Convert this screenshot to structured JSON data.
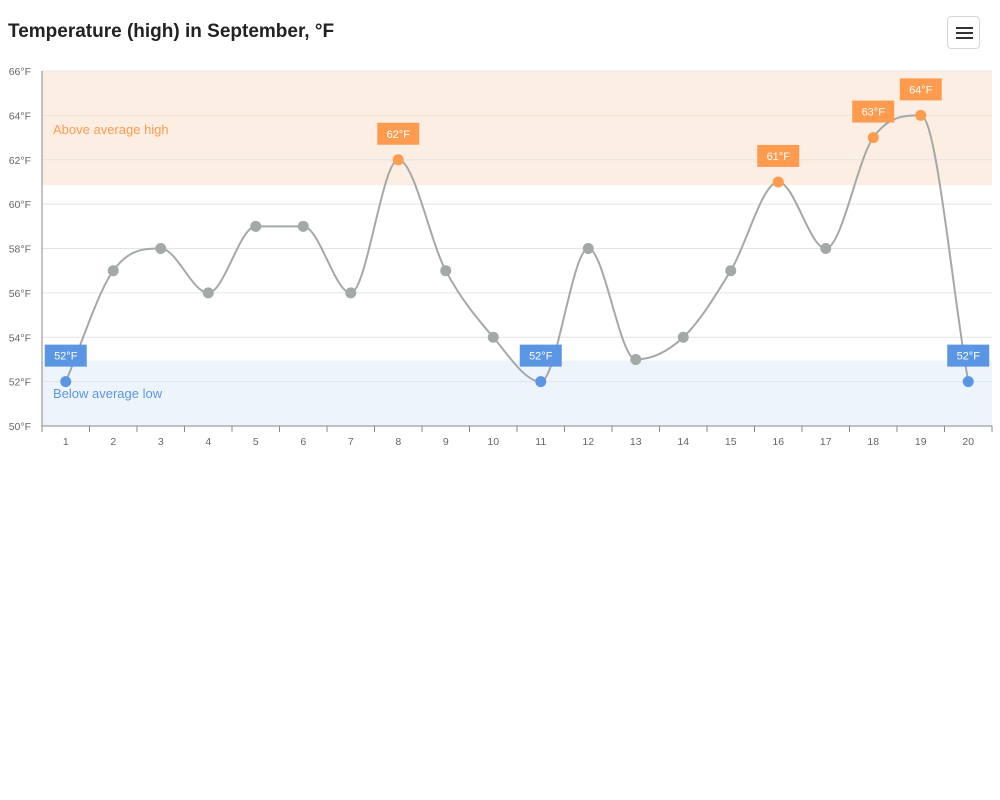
{
  "header": {
    "title": "Temperature (high) in September, °F",
    "menu_icon": "hamburger-menu-icon"
  },
  "colors": {
    "line": "#a3a9a8",
    "point": "#a3a9a8",
    "above": "#ff9b4f",
    "below": "#5a96e3",
    "above_band": "#fdeee3",
    "below_band": "#edf4fc",
    "grid": "#e4e4e4",
    "axis": "#888888"
  },
  "chart_data": {
    "type": "line",
    "title": "Temperature (high) in September, °F",
    "xlabel": "",
    "ylabel": "",
    "x": [
      1,
      2,
      3,
      4,
      5,
      6,
      7,
      8,
      9,
      10,
      11,
      12,
      13,
      14,
      15,
      16,
      17,
      18,
      19,
      20
    ],
    "series": [
      {
        "values": [
          52,
          57,
          58,
          56,
          59,
          59,
          56,
          62,
          57,
          54,
          52,
          58,
          53,
          54,
          57,
          61,
          58,
          63,
          64,
          52
        ]
      }
    ],
    "ylim": [
      50,
      66
    ],
    "yticks": [
      50,
      52,
      54,
      56,
      58,
      60,
      62,
      64,
      66
    ],
    "ytick_labels": [
      "50°F",
      "52°F",
      "54°F",
      "56°F",
      "58°F",
      "60°F",
      "62°F",
      "64°F",
      "66°F"
    ],
    "bands": [
      {
        "label": "Above average high",
        "from": 60.85,
        "to": 66,
        "kind": "above"
      },
      {
        "label": "Below average low",
        "from": 50,
        "to": 52.95,
        "kind": "below"
      }
    ],
    "annotations": [
      {
        "x": 1,
        "text": "52°F",
        "kind": "below"
      },
      {
        "x": 8,
        "text": "62°F",
        "kind": "above"
      },
      {
        "x": 11,
        "text": "52°F",
        "kind": "below"
      },
      {
        "x": 16,
        "text": "61°F",
        "kind": "above"
      },
      {
        "x": 18,
        "text": "63°F",
        "kind": "above"
      },
      {
        "x": 19,
        "text": "64°F",
        "kind": "above"
      },
      {
        "x": 20,
        "text": "52°F",
        "kind": "below"
      }
    ],
    "grid": true,
    "curve": "smooth"
  }
}
